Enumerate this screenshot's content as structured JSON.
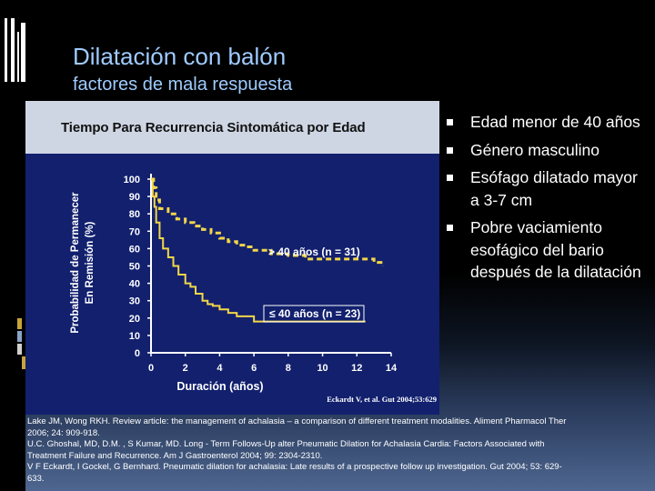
{
  "slide": {
    "title": "Dilatación con balón",
    "subtitle": "factores de mala respuesta",
    "bullets": [
      "Edad menor de 40 años",
      "Género masculino",
      "Esófago dilatado mayor a 3-7 cm",
      "Pobre vaciamiento esofágico del bario después de la dilatación"
    ],
    "references": [
      "Lake JM, Wong RKH. Review article: the management of achalasia – a comparison of different treatment modalities. Aliment Pharmacol Ther 2006; 24: 909-918.",
      "U.C. Ghoshal, MD, D.M. , S Kumar, MD. Long - Term Follows-Up alter Pneumatic Dilation for Achalasia Cardia: Factors Associated with Treatment Failure and Recurrence. Am J Gastroenterol 2004; 99: 2304-2310.",
      "V F Eckardt, I Gockel, G Bernhard. Pneumatic dilation for achalasia: Late results of a prospective follow up investigation. Gut 2004; 53: 629-633."
    ],
    "colors": {
      "title": "#9fcbff",
      "chart_bg": "#12206e",
      "series": "#f2d648",
      "text": "#ffffff"
    }
  },
  "chart_data": {
    "type": "line",
    "title": "Tiempo Para Recurrencia Sintomática por Edad",
    "xlabel": "Duración (años)",
    "ylabel": "Probabilidad de Permanecer En Remisión (%)",
    "xlim": [
      0,
      14
    ],
    "ylim": [
      0,
      100
    ],
    "xticks": [
      0,
      2,
      4,
      6,
      8,
      10,
      12,
      14
    ],
    "yticks": [
      0,
      10,
      20,
      30,
      40,
      50,
      60,
      70,
      80,
      90,
      100
    ],
    "source_note": "Eckardt V, et al. Gut 2004;53:629",
    "series": [
      {
        "name": "> 40 años (n = 31)",
        "style": "dashed",
        "x": [
          0,
          0.15,
          0.3,
          0.5,
          1.0,
          1.5,
          2.0,
          2.5,
          3.0,
          3.5,
          4.0,
          4.5,
          5.0,
          5.5,
          6.0,
          7.0,
          8.0,
          9.0,
          12.0,
          13.0,
          13.5
        ],
        "y": [
          100,
          95,
          88,
          83,
          80,
          77,
          75,
          73,
          71,
          69,
          66,
          64,
          62,
          61,
          59,
          57,
          56,
          54,
          54,
          52,
          50
        ]
      },
      {
        "name": "≤ 40 años (n = 23)",
        "style": "solid",
        "x": [
          0,
          0.1,
          0.2,
          0.3,
          0.5,
          0.7,
          1.0,
          1.3,
          1.6,
          2.0,
          2.3,
          2.6,
          3.0,
          3.3,
          3.6,
          4.0,
          4.5,
          5.0,
          6.0,
          9.5,
          11.5,
          12.5
        ],
        "y": [
          100,
          90,
          84,
          75,
          66,
          60,
          55,
          50,
          45,
          40,
          38,
          34,
          30,
          28,
          27,
          25,
          23,
          21,
          18,
          18,
          18,
          18
        ]
      }
    ]
  }
}
